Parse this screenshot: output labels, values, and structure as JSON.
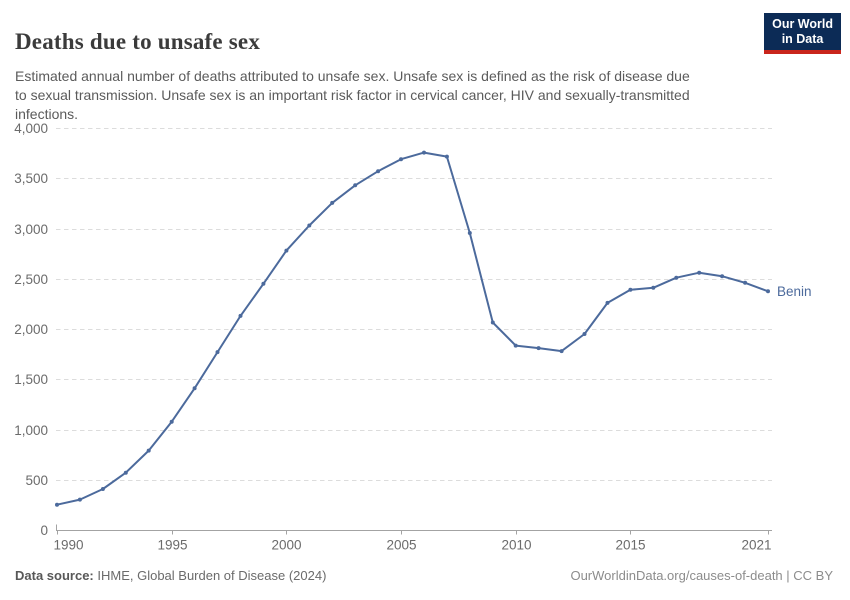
{
  "header": {
    "title": "Deaths due to unsafe sex",
    "subtitle": "Estimated annual number of deaths attributed to unsafe sex. Unsafe sex is defined as the risk of disease due\nto sexual transmission. Unsafe sex is an important risk factor in cervical cancer, HIV and sexually-transmitted\ninfections."
  },
  "logo": {
    "line1": "Our World",
    "line2": "in Data",
    "bg_color": "#0c2b56",
    "accent_color": "#c9251c"
  },
  "chart_data": {
    "type": "line",
    "title": "Deaths due to unsafe sex",
    "x": [
      1990,
      1991,
      1992,
      1993,
      1994,
      1995,
      1996,
      1997,
      1998,
      1999,
      2000,
      2001,
      2002,
      2003,
      2004,
      2005,
      2006,
      2007,
      2008,
      2009,
      2010,
      2011,
      2012,
      2013,
      2014,
      2015,
      2016,
      2017,
      2018,
      2019,
      2020,
      2021
    ],
    "series": [
      {
        "name": "Benin",
        "color": "#4c6a9c",
        "values": [
          252,
          302,
          408,
          570,
          790,
          1078,
          1410,
          1770,
          2130,
          2450,
          2780,
          3030,
          3255,
          3430,
          3570,
          3690,
          3755,
          3715,
          2955,
          2065,
          1835,
          1810,
          1780,
          1950,
          2260,
          2390,
          2410,
          2510,
          2560,
          2525,
          2460,
          2375
        ]
      }
    ],
    "xlim": [
      1990,
      2021
    ],
    "ylim": [
      0,
      4000
    ],
    "xticks": [
      1990,
      1995,
      2000,
      2005,
      2010,
      2015,
      2021
    ],
    "yticks": [
      0,
      500,
      1000,
      1500,
      2000,
      2500,
      3000,
      3500,
      4000
    ],
    "grid": "horizontal-dashed",
    "legend_position": "end-of-line",
    "end_label": "Benin",
    "xlabel": "",
    "ylabel": "",
    "axis_label_color": "#6b6b6b",
    "gridline_color": "#dcdcdc",
    "axis_line_color": "#a3a3a3"
  },
  "footer": {
    "source_label": "Data source:",
    "source_text": " IHME, Global Burden of Disease (2024)",
    "right_text": "OurWorldinData.org/causes-of-death | CC BY"
  }
}
